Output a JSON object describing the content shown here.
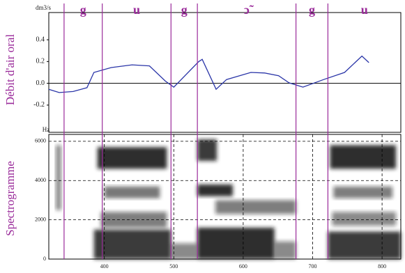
{
  "chart_data": [
    {
      "type": "line",
      "ylabel": "Débit d'air oral",
      "y_unit": "dm3/s",
      "color": "#2a35a8",
      "x": [
        320,
        335,
        355,
        375,
        385,
        410,
        440,
        465,
        488,
        500,
        536,
        541,
        561,
        576,
        611,
        631,
        651,
        666,
        686,
        716,
        746,
        771,
        781
      ],
      "values": [
        -0.055,
        -0.085,
        -0.075,
        -0.04,
        0.1,
        0.145,
        0.17,
        0.16,
        0.02,
        -0.035,
        0.2,
        0.22,
        -0.055,
        0.035,
        0.1,
        0.095,
        0.07,
        0.005,
        -0.035,
        0.035,
        0.1,
        0.25,
        0.19
      ],
      "xlim": [
        320,
        827
      ],
      "ylim": [
        -0.45,
        0.65
      ],
      "yticks": [
        0.4,
        0.2,
        {
          "value": 0,
          "label": "0.0"
        },
        -0.2
      ],
      "segments": [
        {
          "label": "g",
          "start": 342,
          "end": 397
        },
        {
          "label": "u",
          "start": 397,
          "end": 496
        },
        {
          "label": "g",
          "start": 496,
          "end": 534
        },
        {
          "label": "ɔ̃",
          "start": 534,
          "end": 676
        },
        {
          "label": "g",
          "start": 676,
          "end": 722
        },
        {
          "label": "u",
          "start": 722,
          "end": 827
        }
      ]
    },
    {
      "type": "spectrogram",
      "ylabel": "Spectrogramme",
      "y_unit": "Hz",
      "xlim": [
        320,
        827
      ],
      "ylim": [
        0,
        6350
      ],
      "xticks": [
        400,
        500,
        600,
        700,
        800
      ],
      "yticks": [
        0,
        2000,
        4000,
        6000
      ],
      "grid": true,
      "energy": [
        {
          "t": [
            330,
            338
          ],
          "f": [
            2500,
            5800
          ],
          "level": 0.5
        },
        {
          "t": [
            385,
            496
          ],
          "f": [
            0,
            1500
          ],
          "level": 0.85
        },
        {
          "t": [
            390,
            490
          ],
          "f": [
            4600,
            5700
          ],
          "level": 0.9
        },
        {
          "t": [
            400,
            480
          ],
          "f": [
            3100,
            3700
          ],
          "level": 0.6
        },
        {
          "t": [
            395,
            490
          ],
          "f": [
            1600,
            2400
          ],
          "level": 0.55
        },
        {
          "t": [
            496,
            534
          ],
          "f": [
            0,
            800
          ],
          "level": 0.5
        },
        {
          "t": [
            534,
            562
          ],
          "f": [
            5000,
            6100
          ],
          "level": 0.85
        },
        {
          "t": [
            534,
            585
          ],
          "f": [
            3200,
            3800
          ],
          "level": 0.9
        },
        {
          "t": [
            560,
            676
          ],
          "f": [
            2300,
            3000
          ],
          "level": 0.55
        },
        {
          "t": [
            534,
            645
          ],
          "f": [
            0,
            1600
          ],
          "level": 0.9
        },
        {
          "t": [
            645,
            676
          ],
          "f": [
            0,
            900
          ],
          "level": 0.5
        },
        {
          "t": [
            725,
            820
          ],
          "f": [
            4600,
            5800
          ],
          "level": 0.9
        },
        {
          "t": [
            730,
            815
          ],
          "f": [
            3100,
            3700
          ],
          "level": 0.55
        },
        {
          "t": [
            728,
            820
          ],
          "f": [
            1700,
            2400
          ],
          "level": 0.5
        },
        {
          "t": [
            722,
            827
          ],
          "f": [
            0,
            1400
          ],
          "level": 0.85
        }
      ]
    }
  ]
}
